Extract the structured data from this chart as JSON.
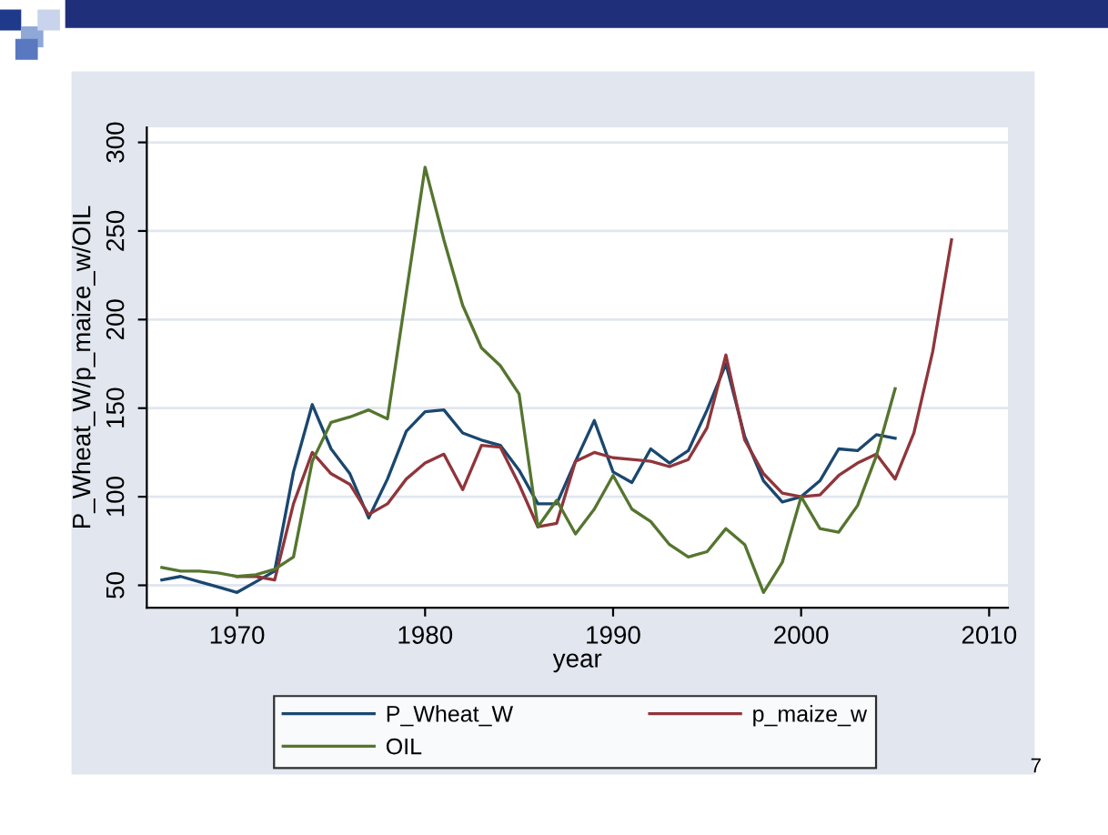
{
  "chart_data": {
    "type": "line",
    "xlabel": "year",
    "ylabel": "P_Wheat_W/p_maize_w/OIL",
    "xlim": [
      1965.2,
      2011
    ],
    "ylim": [
      37.4,
      308.5
    ],
    "xticks": [
      1970,
      1980,
      1990,
      2000,
      2010
    ],
    "yticks": [
      50,
      100,
      150,
      200,
      250,
      300
    ],
    "grid": "y",
    "legend": "bottom",
    "marker": "none",
    "line_style": "solid",
    "annotations": [
      "7"
    ],
    "series": [
      {
        "name": "P_Wheat_W",
        "color": "#1a476f",
        "x": [
          1966,
          1967,
          1968,
          1969,
          1970,
          1971,
          1972,
          1973,
          1974,
          1975,
          1976,
          1977,
          1978,
          1979,
          1980,
          1981,
          1982,
          1983,
          1984,
          1985,
          1986,
          1987,
          1988,
          1989,
          1990,
          1991,
          1992,
          1993,
          1994,
          1995,
          1996,
          1997,
          1998,
          1999,
          2000,
          2001,
          2002,
          2003,
          2004,
          2005
        ],
        "values": [
          53,
          55,
          52,
          49,
          46,
          52,
          58,
          114,
          152,
          127,
          113,
          88,
          110,
          137,
          148,
          149,
          136,
          132,
          129,
          115,
          96,
          96,
          120,
          143,
          114,
          108,
          127,
          119,
          126,
          149,
          175,
          134,
          109,
          97,
          100,
          109,
          127,
          126,
          135,
          133
        ]
      },
      {
        "name": "p_maize_w",
        "color": "#90353b",
        "x": [
          1970,
          1971,
          1972,
          1973,
          1974,
          1975,
          1976,
          1977,
          1978,
          1979,
          1980,
          1981,
          1982,
          1983,
          1984,
          1985,
          1986,
          1987,
          1988,
          1989,
          1990,
          1991,
          1992,
          1993,
          1994,
          1995,
          1996,
          1997,
          1998,
          1999,
          2000,
          2001,
          2002,
          2003,
          2004,
          2005,
          2006,
          2007,
          2008
        ],
        "values": [
          55,
          55,
          53,
          96,
          125,
          113,
          107,
          90,
          96,
          110,
          119,
          124,
          104,
          129,
          128,
          107,
          83,
          85,
          120,
          125,
          122,
          121,
          120,
          117,
          121,
          139,
          180,
          132,
          113,
          102,
          100,
          101,
          112,
          119,
          124,
          110,
          136,
          182,
          245
        ]
      },
      {
        "name": "OIL",
        "color": "#55752f",
        "x": [
          1966,
          1967,
          1968,
          1969,
          1970,
          1971,
          1972,
          1973,
          1974,
          1975,
          1976,
          1977,
          1978,
          1979,
          1980,
          1981,
          1982,
          1983,
          1984,
          1985,
          1986,
          1987,
          1988,
          1989,
          1990,
          1991,
          1992,
          1993,
          1994,
          1995,
          1996,
          1997,
          1998,
          1999,
          2000,
          2001,
          2002,
          2003,
          2004,
          2005
        ],
        "values": [
          60,
          58,
          58,
          57,
          55,
          56,
          59,
          66,
          120,
          142,
          145,
          149,
          144,
          215,
          286,
          245,
          208,
          184,
          174,
          158,
          83,
          98,
          79,
          93,
          112,
          93,
          86,
          73,
          66,
          69,
          82,
          73,
          46,
          63,
          100,
          82,
          80,
          95,
          123,
          161
        ]
      }
    ]
  }
}
